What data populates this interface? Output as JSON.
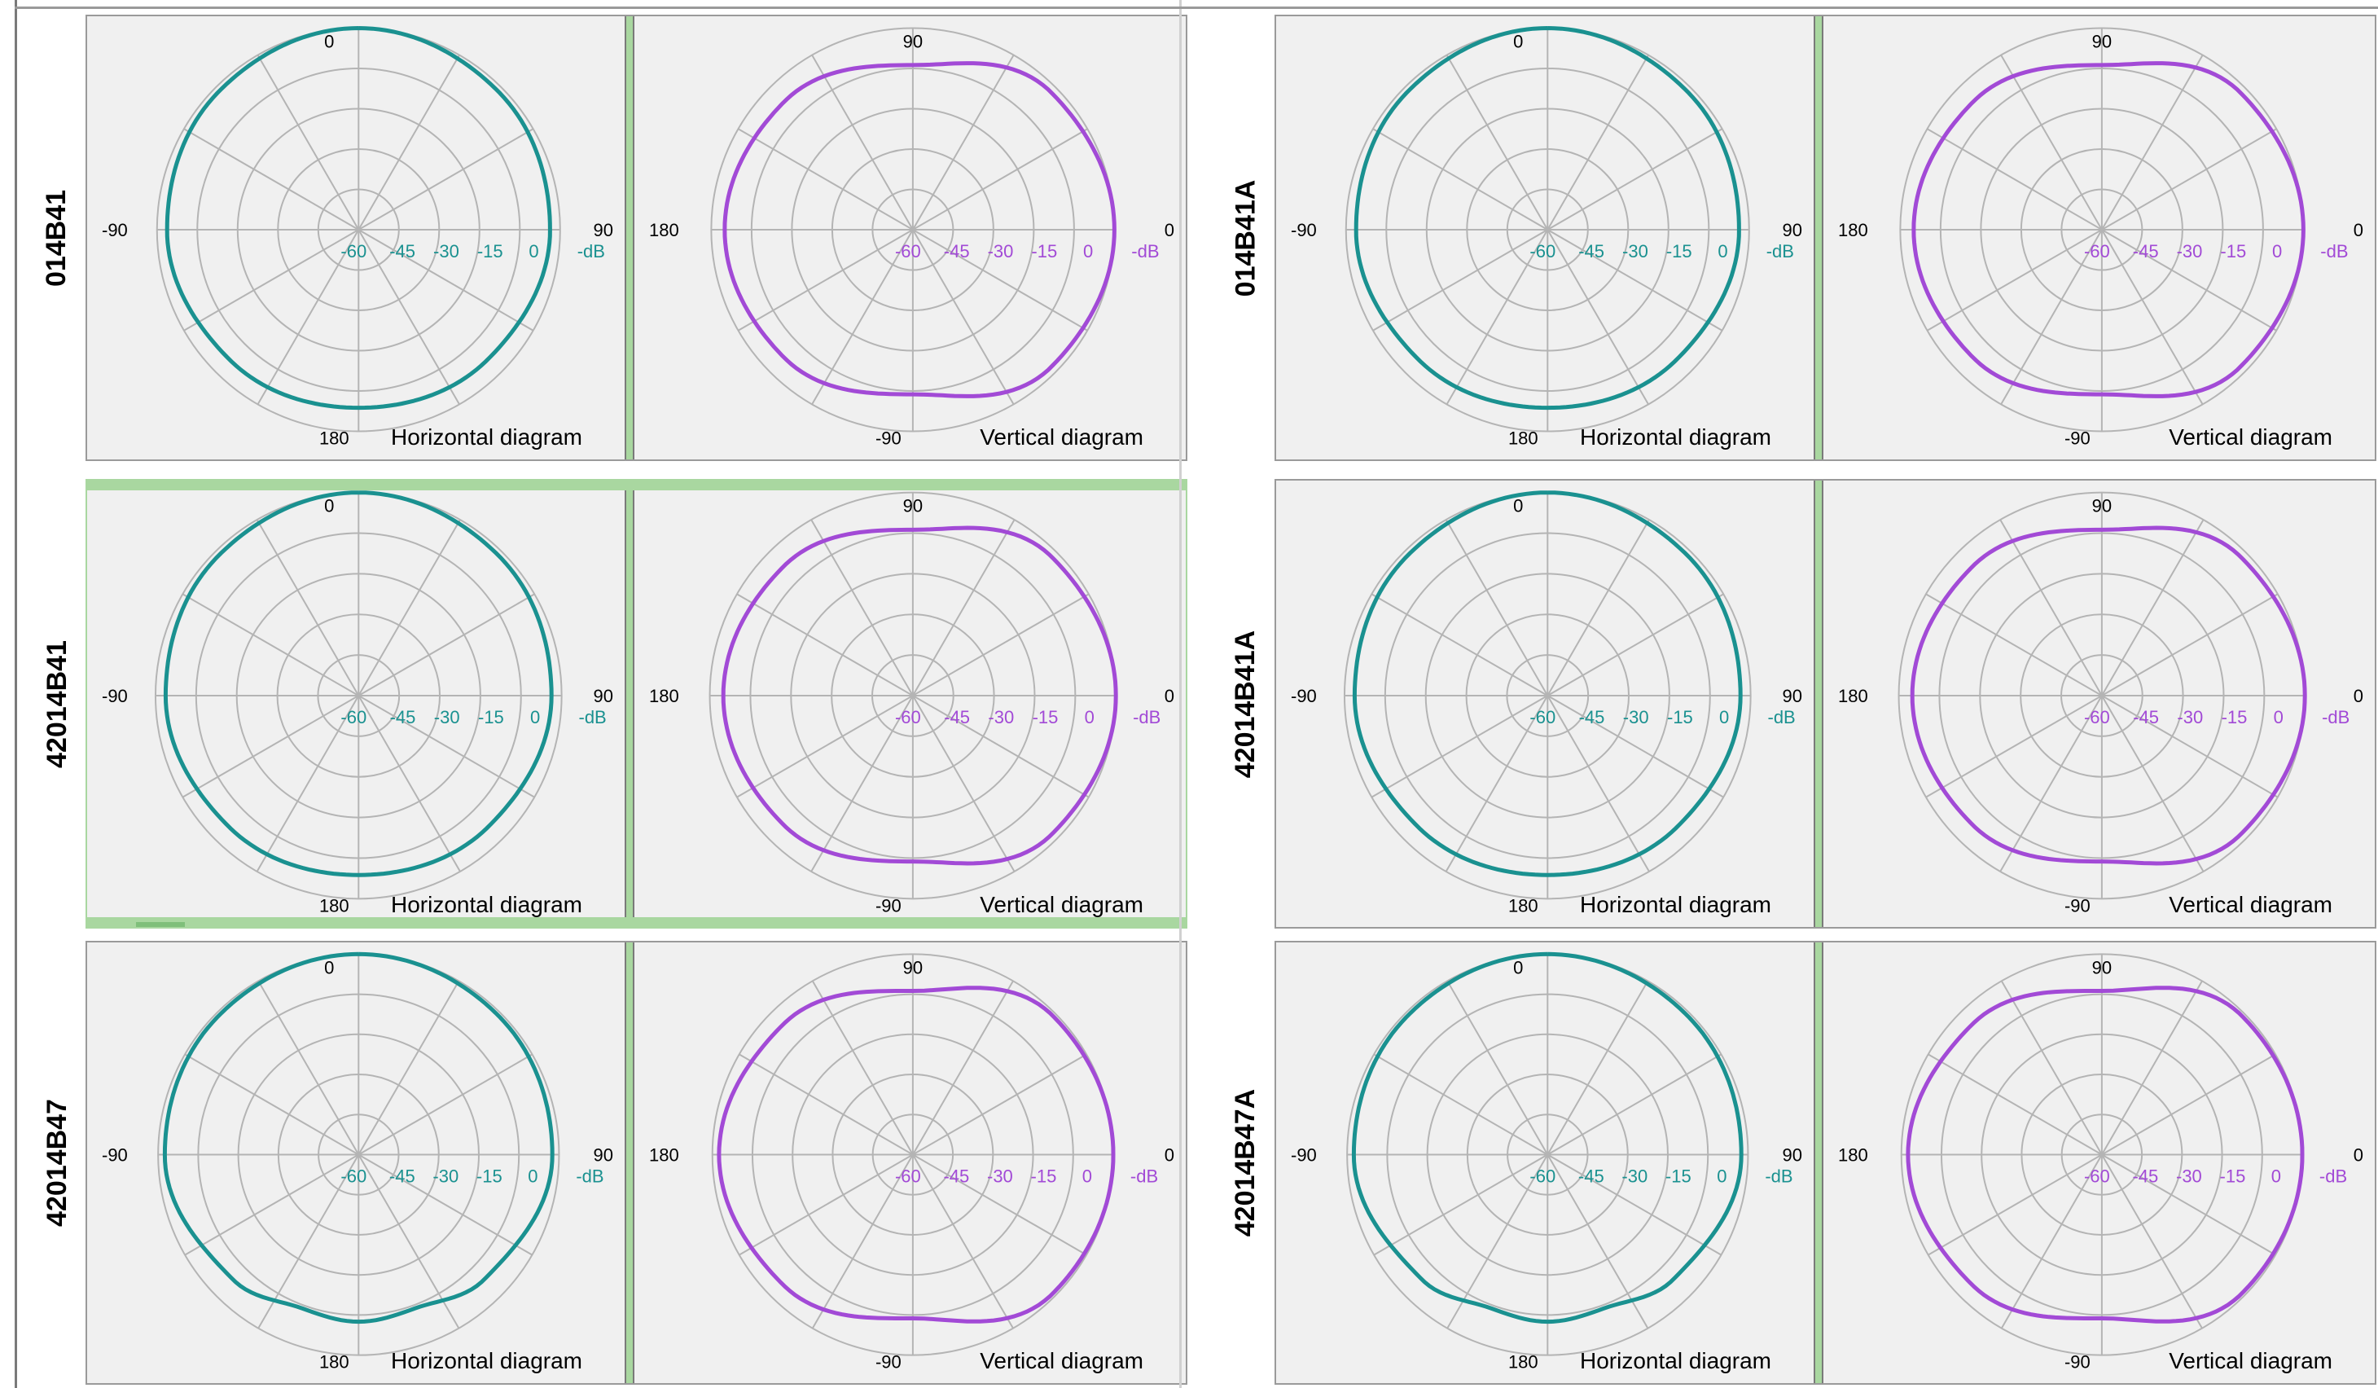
{
  "axis_labels": {
    "horizontal": {
      "top": "0",
      "left": "-90",
      "right": "90",
      "bottom": "180"
    },
    "vertical": {
      "top": "90",
      "left": "180",
      "right": "0",
      "bottom": "-90"
    }
  },
  "ring_labels": [
    "-60",
    "-45",
    "-30",
    "-15",
    "0"
  ],
  "unit_label": "-dB",
  "colors": {
    "horizontal": "#1a9190",
    "vertical": "#a24ad6",
    "grid": "#b4b4b4",
    "panel_bg": "#f0f0f0"
  },
  "chart_data": [
    {
      "type": "polar",
      "antenna": "014B41",
      "title": "Horizontal diagram",
      "radial_unit": "dB",
      "rlim": [
        -60,
        0
      ],
      "angles_deg": [
        0,
        45,
        90,
        135,
        180,
        225,
        270,
        315
      ],
      "values_db": [
        0,
        -1.5,
        -3,
        -5.5,
        -7,
        -5.5,
        -3,
        -1.5
      ]
    },
    {
      "type": "polar",
      "antenna": "014B41",
      "title": "Vertical diagram",
      "radial_unit": "dB",
      "rlim": [
        -60,
        0
      ],
      "angles_deg": [
        0,
        45,
        90,
        135,
        180,
        225,
        270,
        315
      ],
      "values_db": [
        0,
        -2,
        -11,
        -6,
        -4,
        -6,
        -11,
        -2
      ]
    },
    {
      "type": "polar",
      "antenna": "014B41A",
      "title": "Horizontal diagram",
      "radial_unit": "dB",
      "rlim": [
        -60,
        0
      ],
      "angles_deg": [
        0,
        45,
        90,
        135,
        180,
        225,
        270,
        315
      ],
      "values_db": [
        0,
        -1.5,
        -3,
        -5.5,
        -7,
        -5.5,
        -3,
        -1.5
      ]
    },
    {
      "type": "polar",
      "antenna": "014B41A",
      "title": "Vertical diagram",
      "radial_unit": "dB",
      "rlim": [
        -60,
        0
      ],
      "angles_deg": [
        0,
        45,
        90,
        135,
        180,
        225,
        270,
        315
      ],
      "values_db": [
        0,
        -2,
        -11,
        -6,
        -4,
        -6,
        -11,
        -2
      ]
    },
    {
      "type": "polar",
      "antenna": "42014B41",
      "title": "Horizontal diagram",
      "radial_unit": "dB",
      "rlim": [
        -60,
        0
      ],
      "angles_deg": [
        0,
        45,
        90,
        135,
        180,
        225,
        270,
        315
      ],
      "values_db": [
        0,
        -1.5,
        -3,
        -5.5,
        -7,
        -5.5,
        -3,
        -1.5
      ]
    },
    {
      "type": "polar",
      "antenna": "42014B41",
      "title": "Vertical diagram",
      "radial_unit": "dB",
      "rlim": [
        -60,
        0
      ],
      "angles_deg": [
        0,
        45,
        90,
        135,
        180,
        225,
        270,
        315
      ],
      "values_db": [
        0,
        -2,
        -11,
        -6,
        -4,
        -6,
        -11,
        -2
      ]
    },
    {
      "type": "polar",
      "antenna": "42014B41A",
      "title": "Horizontal diagram",
      "radial_unit": "dB",
      "rlim": [
        -60,
        0
      ],
      "angles_deg": [
        0,
        45,
        90,
        135,
        180,
        225,
        270,
        315
      ],
      "values_db": [
        0,
        -1.5,
        -3,
        -5.5,
        -7,
        -5.5,
        -3,
        -1.5
      ]
    },
    {
      "type": "polar",
      "antenna": "42014B41A",
      "title": "Vertical diagram",
      "radial_unit": "dB",
      "rlim": [
        -60,
        0
      ],
      "angles_deg": [
        0,
        45,
        90,
        135,
        180,
        225,
        270,
        315
      ],
      "values_db": [
        0,
        -2,
        -11,
        -6,
        -4,
        -6,
        -11,
        -2
      ]
    },
    {
      "type": "polar",
      "antenna": "42014B47",
      "title": "Horizontal diagram",
      "radial_unit": "dB",
      "rlim": [
        -60,
        0
      ],
      "angles_deg": [
        0,
        45,
        90,
        135,
        160,
        180,
        200,
        225,
        270,
        315
      ],
      "values_db": [
        0,
        -1,
        -2,
        -7,
        -11,
        -10,
        -11,
        -7,
        -2,
        -1
      ]
    },
    {
      "type": "polar",
      "antenna": "42014B47",
      "title": "Vertical diagram",
      "radial_unit": "dB",
      "rlim": [
        -60,
        0
      ],
      "angles_deg": [
        0,
        45,
        90,
        135,
        180,
        225,
        270,
        315
      ],
      "values_db": [
        0,
        -1,
        -11,
        -5,
        -2,
        -5,
        -11,
        -1
      ]
    },
    {
      "type": "polar",
      "antenna": "42014B47A",
      "title": "Horizontal diagram",
      "radial_unit": "dB",
      "rlim": [
        -60,
        0
      ],
      "angles_deg": [
        0,
        45,
        90,
        135,
        160,
        180,
        200,
        225,
        270,
        315
      ],
      "values_db": [
        0,
        -1,
        -2,
        -7,
        -11,
        -10,
        -11,
        -7,
        -2,
        -1
      ]
    },
    {
      "type": "polar",
      "antenna": "42014B47A",
      "title": "Vertical diagram",
      "radial_unit": "dB",
      "rlim": [
        -60,
        0
      ],
      "angles_deg": [
        0,
        45,
        90,
        135,
        180,
        225,
        270,
        315
      ],
      "values_db": [
        0,
        -1,
        -11,
        -5,
        -2,
        -5,
        -11,
        -1
      ]
    }
  ]
}
